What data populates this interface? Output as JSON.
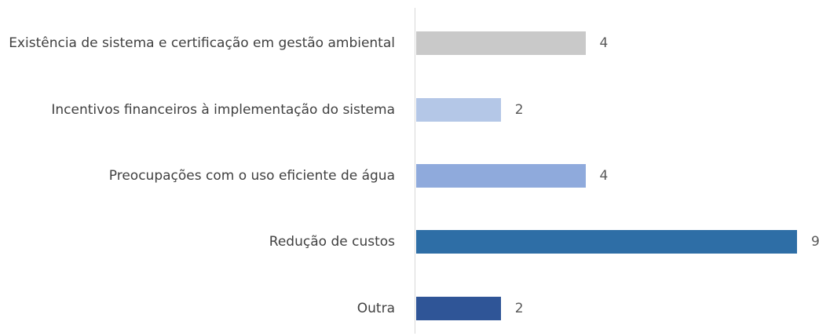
{
  "chart_data": {
    "type": "bar",
    "orientation": "horizontal",
    "categories": [
      "Existência de sistema e certificação em gestão ambiental",
      "Incentivos financeiros à implementação do sistema",
      "Preocupações com o uso eficiente de água",
      "Redução de custos",
      "Outra"
    ],
    "values": [
      4,
      2,
      4,
      9,
      2
    ],
    "colors": [
      "#c9c9c9",
      "#b4c7e7",
      "#8faadc",
      "#2e6ea6",
      "#2f5597"
    ],
    "xlim": [
      0,
      9
    ]
  }
}
